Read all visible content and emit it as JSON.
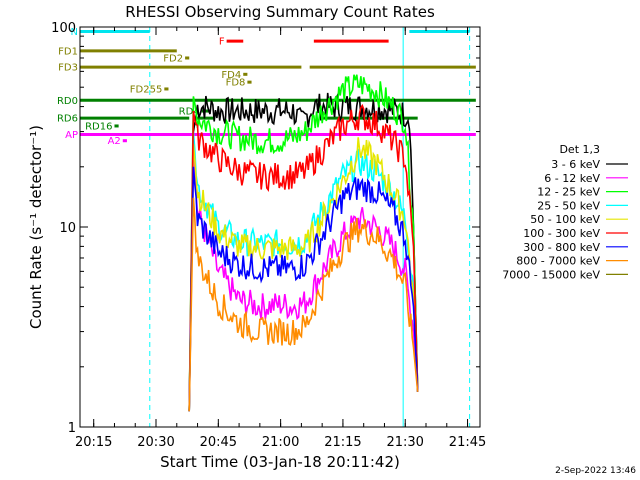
{
  "chart_data": {
    "type": "line",
    "title": "RHESSI Observing Summary Count Rates",
    "xlabel": "Start Time (03-Jan-18 20:11:42)",
    "ylabel": "Count Rate (s⁻¹ detector⁻¹)",
    "x_scale": "time",
    "y_scale": "log",
    "xlim": [
      "20:11:42",
      "21:48:00"
    ],
    "ylim": [
      1,
      100
    ],
    "x_ticks": [
      "20:15",
      "20:30",
      "20:45",
      "21:00",
      "21:15",
      "21:30",
      "21:45"
    ],
    "y_ticks": [
      "1",
      "10",
      "100"
    ],
    "legend_title": "Det 1,3",
    "legend_position": "right",
    "series": [
      {
        "name": "3 - 6 keV",
        "color": "#000000",
        "x": [
          "20:38",
          "20:39",
          "20:40",
          "20:42",
          "20:45",
          "20:50",
          "20:55",
          "21:00",
          "21:03",
          "21:05",
          "21:08",
          "21:12",
          "21:18",
          "21:25",
          "21:28",
          "21:31",
          "21:32",
          "21:33"
        ],
        "y": [
          1.2,
          30,
          40,
          40,
          38,
          38,
          38,
          38,
          38,
          33,
          40,
          40,
          40,
          39,
          38,
          36,
          10,
          1.5
        ]
      },
      {
        "name": "6 - 12 keV",
        "color": "#ff00ff",
        "x": [
          "20:38",
          "20:39",
          "20:40",
          "20:45",
          "20:50",
          "20:55",
          "21:00",
          "21:03",
          "21:06",
          "21:10",
          "21:15",
          "21:19",
          "21:23",
          "21:27",
          "21:30",
          "21:32",
          "21:33"
        ],
        "y": [
          1.2,
          22,
          12,
          6,
          4.3,
          4.0,
          4.1,
          4.0,
          4.2,
          6,
          9,
          11,
          10,
          8,
          6,
          3,
          1.5
        ]
      },
      {
        "name": "12 - 25 keV",
        "color": "#00ff00",
        "x": [
          "20:38",
          "20:39",
          "20:40",
          "20:45",
          "20:50",
          "20:55",
          "21:00",
          "21:03",
          "21:06",
          "21:10",
          "21:15",
          "21:19",
          "21:23",
          "21:27",
          "21:30",
          "21:32",
          "21:33"
        ],
        "y": [
          1.2,
          45,
          35,
          30,
          28,
          27,
          27,
          28,
          30,
          38,
          48,
          52,
          48,
          40,
          34,
          10,
          1.5
        ]
      },
      {
        "name": "25 - 50 keV",
        "color": "#00ffff",
        "x": [
          "20:38",
          "20:39",
          "20:40",
          "20:45",
          "20:50",
          "20:55",
          "21:00",
          "21:03",
          "21:06",
          "21:10",
          "21:15",
          "21:19",
          "21:23",
          "21:27",
          "21:30",
          "21:32",
          "21:33"
        ],
        "y": [
          1.2,
          30,
          16,
          10,
          8.5,
          8.2,
          8.3,
          8.2,
          8.6,
          12,
          18,
          21,
          19,
          15,
          11,
          5,
          1.5
        ]
      },
      {
        "name": "50 - 100 keV",
        "color": "#e6e600",
        "x": [
          "20:38",
          "20:39",
          "20:40",
          "20:45",
          "20:50",
          "20:55",
          "21:00",
          "21:03",
          "21:06",
          "21:10",
          "21:15",
          "21:19",
          "21:23",
          "21:27",
          "21:30",
          "21:32",
          "21:33"
        ],
        "y": [
          1.2,
          26,
          15,
          9.5,
          8.0,
          7.8,
          7.8,
          7.8,
          8.0,
          11,
          17,
          25,
          21,
          15,
          11,
          4.5,
          1.5
        ]
      },
      {
        "name": "100 - 300 keV",
        "color": "#ff0000",
        "x": [
          "20:38",
          "20:39",
          "20:40",
          "20:45",
          "20:50",
          "20:55",
          "21:00",
          "21:03",
          "21:06",
          "21:10",
          "21:15",
          "21:19",
          "21:23",
          "21:27",
          "21:30",
          "21:32",
          "21:33"
        ],
        "y": [
          1.2,
          38,
          28,
          22,
          19,
          18,
          18,
          18,
          19,
          24,
          32,
          36,
          33,
          27,
          22,
          8,
          1.5
        ]
      },
      {
        "name": "300 - 800 keV",
        "color": "#0000ff",
        "x": [
          "20:38",
          "20:39",
          "20:40",
          "20:45",
          "20:50",
          "20:55",
          "21:00",
          "21:03",
          "21:06",
          "21:10",
          "21:15",
          "21:19",
          "21:23",
          "21:27",
          "21:30",
          "21:32",
          "21:33"
        ],
        "y": [
          1.2,
          20,
          11,
          7.5,
          6.5,
          6.2,
          6.2,
          6.2,
          6.5,
          9,
          14,
          16,
          15,
          12,
          9,
          4,
          1.5
        ]
      },
      {
        "name": "800 - 7000 keV",
        "color": "#ff8c00",
        "x": [
          "20:38",
          "20:39",
          "20:40",
          "20:45",
          "20:50",
          "20:55",
          "21:00",
          "21:03",
          "21:06",
          "21:10",
          "21:15",
          "21:19",
          "21:23",
          "21:27",
          "21:30",
          "21:32",
          "21:33"
        ],
        "y": [
          1.2,
          14,
          7,
          4.2,
          3.3,
          3.0,
          3.0,
          3.0,
          3.2,
          5,
          8,
          10,
          9,
          7,
          5,
          2.5,
          1.5
        ]
      },
      {
        "name": "7000 - 15000 keV",
        "color": "#808000",
        "x": [],
        "y": []
      }
    ],
    "flags": [
      {
        "label": "N",
        "color": "#00e5ee",
        "y": 95,
        "segments": [
          [
            "20:11:42",
            "20:28:30"
          ],
          [
            "21:31:00",
            "21:45:30"
          ]
        ]
      },
      {
        "label": "F",
        "color": "#ff0000",
        "y": 85,
        "segments": [
          [
            "20:47",
            "20:51"
          ],
          [
            "21:08",
            "21:26"
          ]
        ]
      },
      {
        "label": "FD1",
        "color": "#808000",
        "y": 76,
        "segments": [
          [
            "20:11:42",
            "20:35"
          ]
        ]
      },
      {
        "label": "FD2",
        "color": "#808000",
        "y": 70,
        "segments": [
          [
            "20:37",
            "20:38"
          ]
        ]
      },
      {
        "label": "FD3",
        "color": "#808000",
        "y": 63,
        "segments": [
          [
            "20:11:42",
            "21:05"
          ],
          [
            "21:07",
            "21:47"
          ]
        ]
      },
      {
        "label": "FD4",
        "color": "#808000",
        "y": 58,
        "segments": [
          [
            "20:51",
            "20:52"
          ]
        ]
      },
      {
        "label": "FD8",
        "color": "#808000",
        "y": 53,
        "segments": [
          [
            "20:52",
            "20:53"
          ]
        ]
      },
      {
        "label": "FD255",
        "color": "#808000",
        "y": 49,
        "segments": [
          [
            "20:32",
            "20:33"
          ]
        ]
      },
      {
        "label": "RD0",
        "color": "#008000",
        "y": 43,
        "segments": [
          [
            "20:11:42",
            "21:47"
          ]
        ]
      },
      {
        "label": "RD4",
        "color": "#008000",
        "y": 38,
        "segments": [
          [
            "20:41",
            "20:43"
          ]
        ]
      },
      {
        "label": "RD6",
        "color": "#008000",
        "y": 35,
        "segments": [
          [
            "20:11:42",
            "20:38"
          ],
          [
            "20:39",
            "20:44"
          ],
          [
            "21:10",
            "21:33"
          ]
        ]
      },
      {
        "label": "RD16",
        "color": "#008000",
        "y": 32,
        "segments": [
          [
            "20:20",
            "20:21"
          ]
        ]
      },
      {
        "label": "AP",
        "color": "#ff00ff",
        "y": 29,
        "segments": [
          [
            "20:11:42",
            "21:47"
          ]
        ]
      },
      {
        "label": "A2",
        "color": "#ff00ff",
        "y": 27,
        "segments": [
          [
            "20:22",
            "20:23"
          ]
        ]
      }
    ],
    "vlines": [
      {
        "x": "20:11:42",
        "style": "solid",
        "color": "#00ffff"
      },
      {
        "x": "20:28:30",
        "style": "dashed",
        "color": "#00ffff"
      },
      {
        "x": "21:29:30",
        "style": "solid",
        "color": "#00ffff"
      },
      {
        "x": "21:45:30",
        "style": "dashed",
        "color": "#00ffff"
      }
    ]
  },
  "footer": {
    "timestamp": "2-Sep-2022 13:46"
  }
}
